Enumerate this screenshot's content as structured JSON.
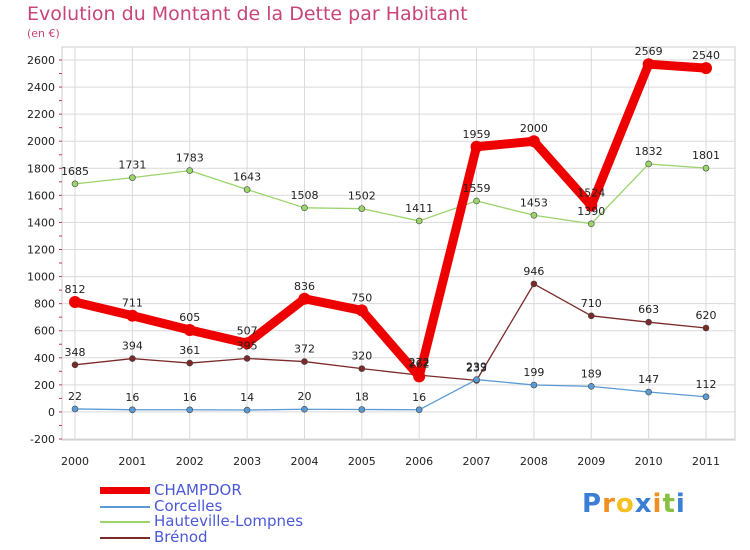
{
  "title": "Evolution du Montant de la Dette par Habitant",
  "subtitle": "(en €)",
  "logo_text": "Proxiti",
  "chart_data": {
    "type": "line",
    "title": "Evolution du Montant de la Dette par Habitant",
    "subtitle": "(en €)",
    "xlabel": "",
    "ylabel": "",
    "x": [
      "2000",
      "2001",
      "2002",
      "2003",
      "2004",
      "2005",
      "2006",
      "2007",
      "2008",
      "2009",
      "2010",
      "2011"
    ],
    "ylim": [
      -200,
      2600
    ],
    "yticks": [
      "-200",
      "0",
      "200",
      "400",
      "600",
      "800",
      "1000",
      "1200",
      "1400",
      "1600",
      "1800",
      "2000",
      "2200",
      "2400",
      "2600"
    ],
    "grid": true,
    "legend_position": "bottom-left",
    "series": [
      {
        "name": "CHAMPDOR",
        "color": "#ee0000",
        "values": [
          812,
          711,
          605,
          507,
          836,
          750,
          262,
          1959,
          2000,
          1524,
          2569,
          2540
        ],
        "labels": [
          "812",
          "711",
          "605",
          "507",
          "836",
          "750",
          "262",
          "1959",
          "2000",
          "1524",
          "2569",
          "2540"
        ]
      },
      {
        "name": "Corcelles",
        "color": "#5b9bd5",
        "values": [
          22,
          16,
          16,
          14,
          20,
          18,
          16,
          239,
          199,
          189,
          147,
          112
        ],
        "labels": [
          "22",
          "16",
          "16",
          "14",
          "20",
          "18",
          "16",
          "239",
          "199",
          "189",
          "147",
          "112"
        ]
      },
      {
        "name": "Hauteville-Lompnes",
        "color": "#9ad46a",
        "values": [
          1685,
          1731,
          1783,
          1643,
          1508,
          1502,
          1411,
          1559,
          1453,
          1390,
          1832,
          1801
        ],
        "labels": [
          "1685",
          "1731",
          "1783",
          "1643",
          "1508",
          "1502",
          "1411",
          "1559",
          "1453",
          "1390",
          "1832",
          "1801"
        ]
      },
      {
        "name": "Brénod",
        "color": "#7b2a2a",
        "values": [
          348,
          394,
          361,
          395,
          372,
          320,
          272,
          233,
          946,
          710,
          663,
          620
        ],
        "labels": [
          "348",
          "394",
          "361",
          "395",
          "372",
          "320",
          "272",
          "233",
          "946",
          "710",
          "663",
          "620"
        ]
      }
    ]
  }
}
